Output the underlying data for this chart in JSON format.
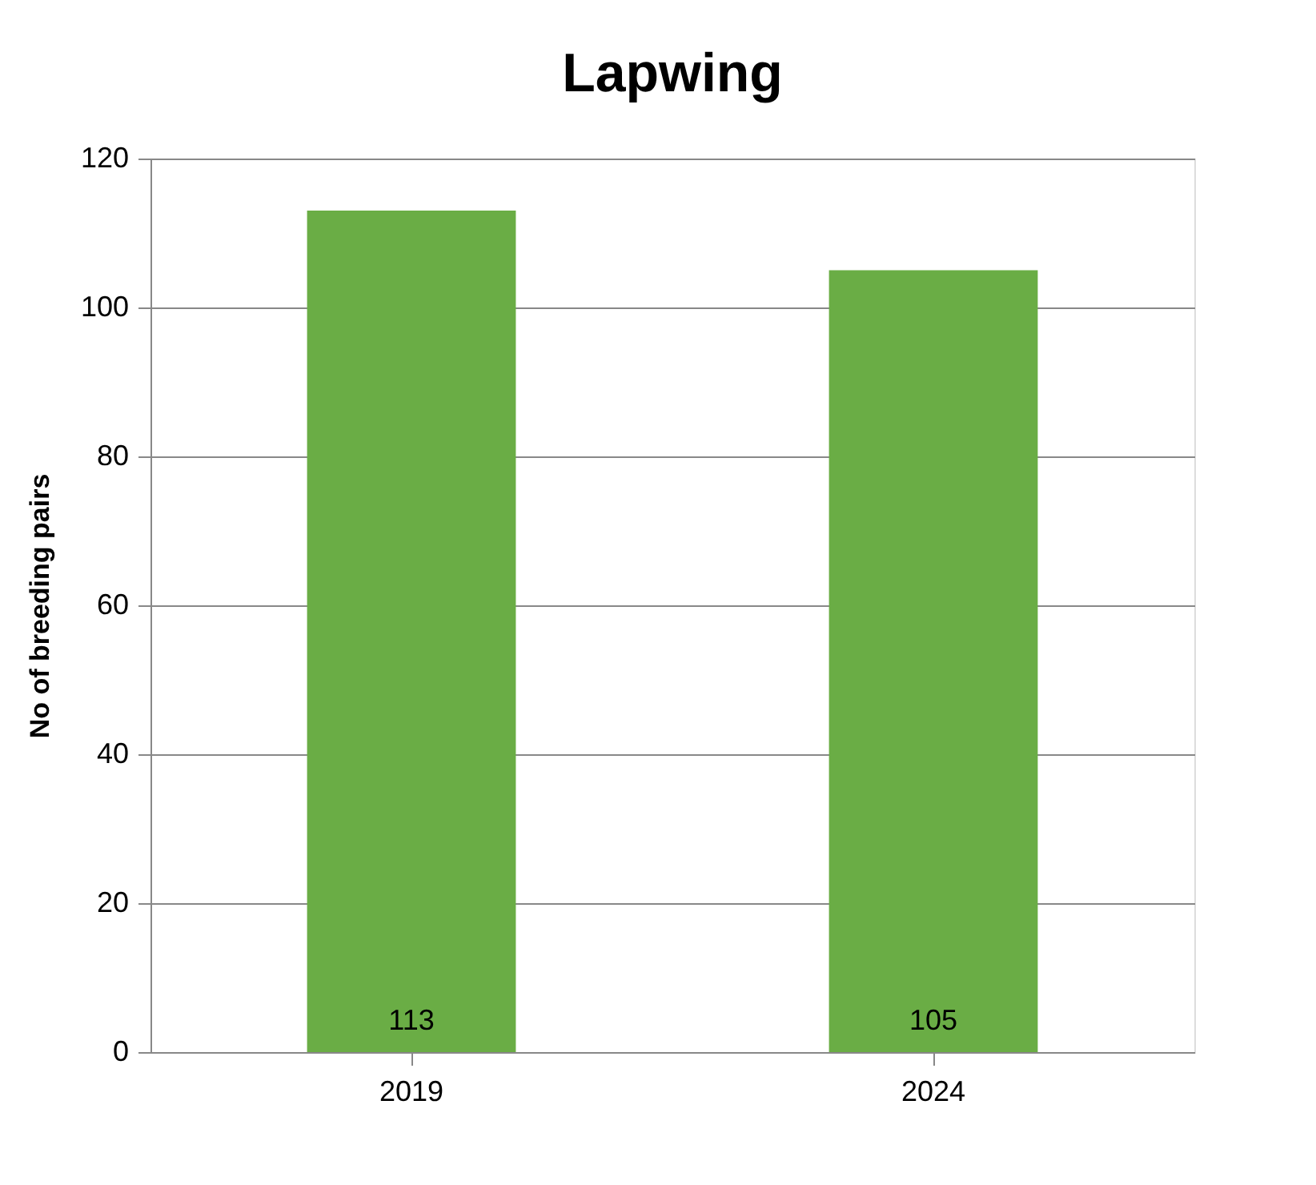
{
  "chart_data": {
    "type": "bar",
    "title": "Lapwing",
    "ylabel": "No of breeding pairs",
    "categories": [
      "2019",
      "2024"
    ],
    "values": [
      113,
      105
    ],
    "color": "#6aad45",
    "ylim": [
      0,
      120
    ],
    "yticks": [
      0,
      20,
      40,
      60,
      80,
      100,
      120
    ],
    "grid": "y",
    "data_labels": true
  }
}
